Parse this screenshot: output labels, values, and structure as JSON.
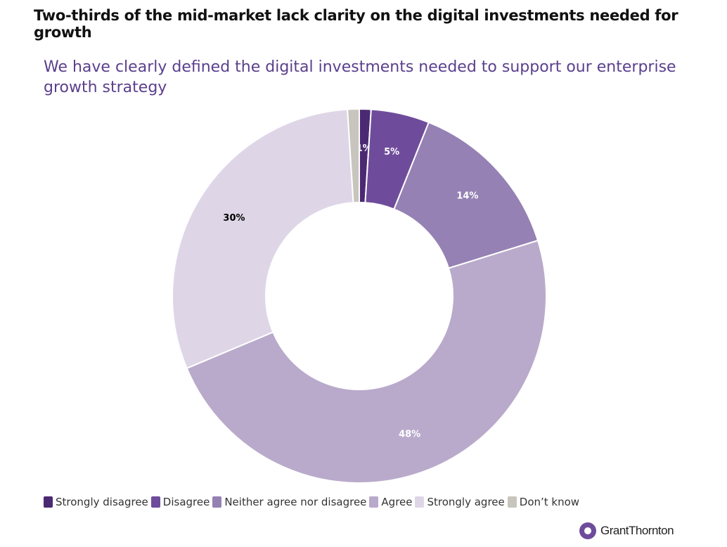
{
  "headline": "Two-thirds of the mid-market lack clarity on the digital investments needed for growth",
  "brand": {
    "logo_text": "GrantThornton",
    "logo_icon": "grant-thornton-logo-icon"
  },
  "chart_data": {
    "type": "pie",
    "donut": true,
    "title": "We have clearly defined the digital investments needed to support our enterprise growth strategy",
    "legend_position": "bottom-left",
    "slices": [
      {
        "name": "Strongly disagree",
        "value": 1,
        "label": "1%",
        "color": "#4b2a73",
        "label_color": "#ffffff"
      },
      {
        "name": "Disagree",
        "value": 5,
        "label": "5%",
        "color": "#6f4c9b",
        "label_color": "#ffffff"
      },
      {
        "name": "Neither agree nor disagree",
        "value": 14,
        "label": "14%",
        "color": "#9581b3",
        "label_color": "#ffffff"
      },
      {
        "name": "Agree",
        "value": 48,
        "label": "48%",
        "color": "#b9aacb",
        "label_color": "#ffffff"
      },
      {
        "name": "Strongly agree",
        "value": 30,
        "label": "30%",
        "color": "#ded6e7",
        "label_color": "#000000"
      },
      {
        "name": "Don’t know",
        "value": 1,
        "label": "",
        "color": "#c8c4be",
        "label_color": "#000000"
      }
    ]
  }
}
